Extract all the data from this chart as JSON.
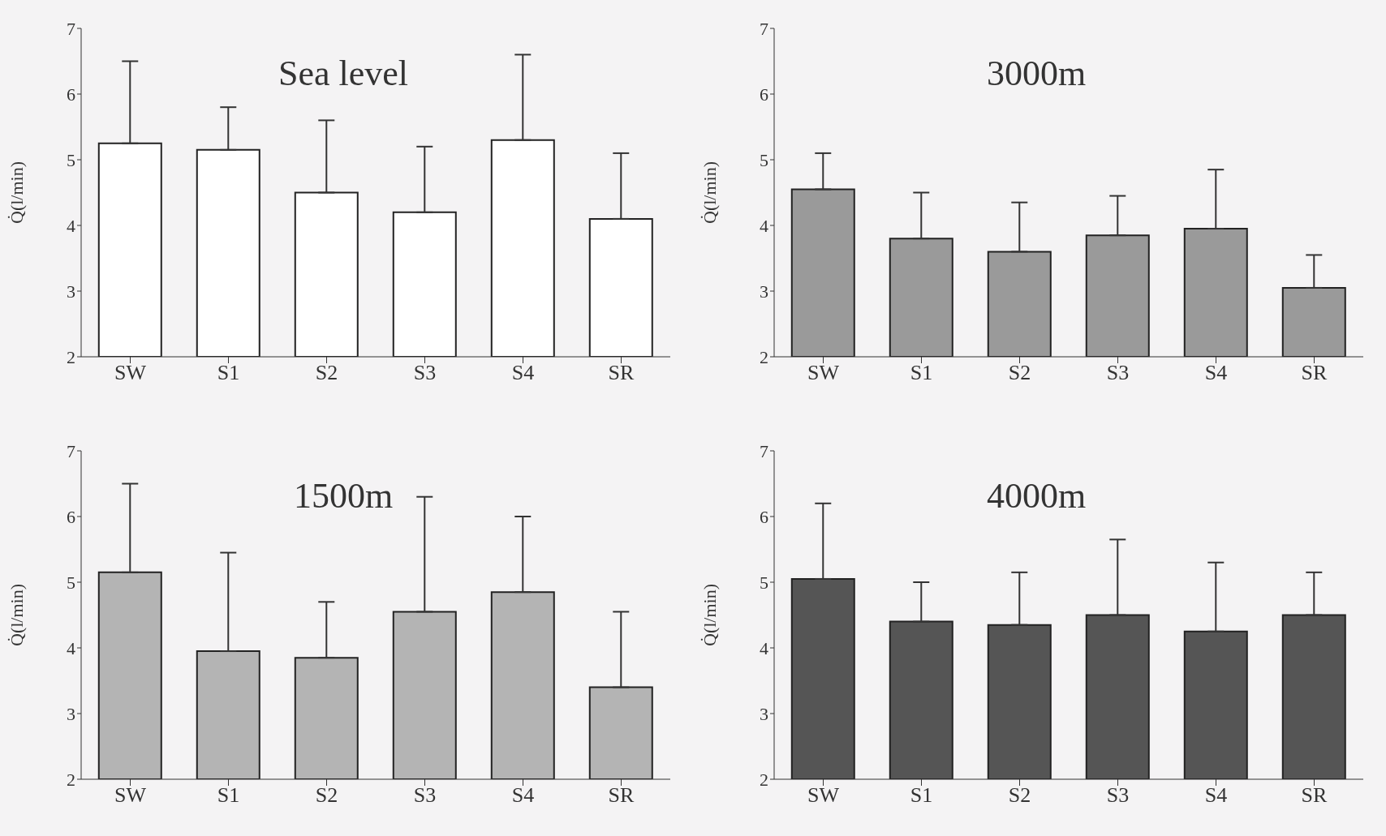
{
  "chart_data": [
    {
      "type": "bar",
      "title": "Sea level",
      "ylabel": "Q̇(l/min)",
      "categories": [
        "SW",
        "S1",
        "S2",
        "S3",
        "S4",
        "SR"
      ],
      "values": [
        5.25,
        5.15,
        4.5,
        4.2,
        5.3,
        4.1
      ],
      "errors": [
        [
          5.25,
          6.5
        ],
        [
          5.15,
          5.8
        ],
        [
          4.5,
          5.6
        ],
        [
          4.2,
          5.2
        ],
        [
          5.3,
          6.6
        ],
        [
          4.1,
          5.1
        ]
      ],
      "color": "#ffffff",
      "ylim": [
        2,
        7
      ],
      "yticks": [
        2,
        3,
        4,
        5,
        6,
        7
      ]
    },
    {
      "type": "bar",
      "title": "3000m",
      "ylabel": "Q̇(l/min)",
      "categories": [
        "SW",
        "S1",
        "S2",
        "S3",
        "S4",
        "SR"
      ],
      "values": [
        4.55,
        3.8,
        3.6,
        3.85,
        3.95,
        3.05
      ],
      "errors": [
        [
          4.55,
          5.1
        ],
        [
          3.8,
          4.5
        ],
        [
          3.6,
          4.35
        ],
        [
          3.85,
          4.45
        ],
        [
          3.95,
          4.85
        ],
        [
          3.05,
          3.55
        ]
      ],
      "color": "#9a9a9a",
      "ylim": [
        2,
        7
      ],
      "yticks": [
        2,
        3,
        4,
        5,
        6,
        7
      ]
    },
    {
      "type": "bar",
      "title": "1500m",
      "ylabel": "Q̇(l/min)",
      "categories": [
        "SW",
        "S1",
        "S2",
        "S3",
        "S4",
        "SR"
      ],
      "values": [
        5.15,
        3.95,
        3.85,
        4.55,
        4.85,
        3.4
      ],
      "errors": [
        [
          5.15,
          6.5
        ],
        [
          3.95,
          5.45
        ],
        [
          3.85,
          4.7
        ],
        [
          4.55,
          6.3
        ],
        [
          4.85,
          6.0
        ],
        [
          3.4,
          4.55
        ]
      ],
      "color": "#b4b4b4",
      "ylim": [
        2,
        7
      ],
      "yticks": [
        2,
        3,
        4,
        5,
        6,
        7
      ]
    },
    {
      "type": "bar",
      "title": "4000m",
      "ylabel": "Q̇(l/min)",
      "categories": [
        "SW",
        "S1",
        "S2",
        "S3",
        "S4",
        "SR"
      ],
      "values": [
        5.05,
        4.4,
        4.35,
        4.5,
        4.25,
        4.5
      ],
      "errors": [
        [
          5.05,
          6.2
        ],
        [
          4.4,
          5.0
        ],
        [
          4.35,
          5.15
        ],
        [
          4.5,
          5.65
        ],
        [
          4.25,
          5.3
        ],
        [
          4.5,
          5.15
        ]
      ],
      "color": "#555555",
      "ylim": [
        2,
        7
      ],
      "yticks": [
        2,
        3,
        4,
        5,
        6,
        7
      ]
    }
  ]
}
